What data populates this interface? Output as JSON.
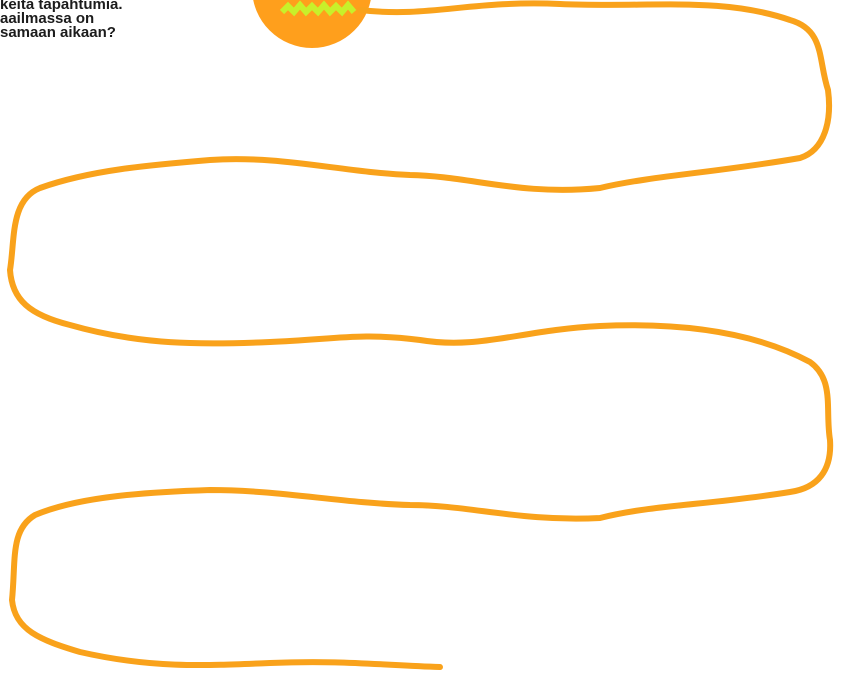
{
  "intro": {
    "lines": [
      "keita tapahtumia.",
      "aailmassa on",
      "samaan aikaan?"
    ]
  }
}
